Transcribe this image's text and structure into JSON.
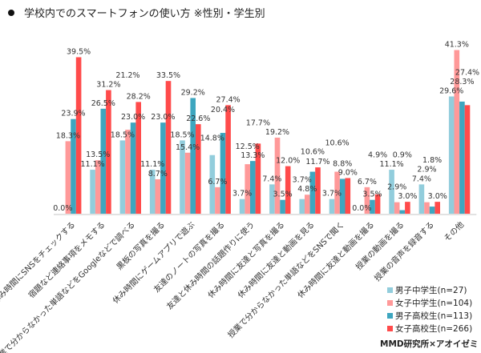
{
  "title": "学校内でのスマートフォンの使い方 ※性別・学生別",
  "credit": "MMD研究所×アオイゼミ",
  "chart_data": {
    "type": "bar",
    "title": "学校内でのスマートフォンの使い方 ※性別・学生別",
    "xlabel": "",
    "ylabel": "",
    "ylim": [
      0,
      45
    ],
    "grid": false,
    "legend_position": "bottom-right",
    "value_suffix": "%",
    "categories": [
      "休み時間にSNSをチェックする",
      "宿題など連絡事項をメモする",
      "授業で分からなかった単語などをGoogleなどで調べる",
      "黒板の写真を撮る",
      "休み時間にゲームアプリで遊ぶ",
      "友達のノートの写真を撮る",
      "友達と休み時間の話題作りに使う",
      "休み時間に友達と写真を撮る",
      "休み時間に友達と動画を見る",
      "授業で分からなかった単語などをSNSで聞く",
      "休み時間に友達と動画を撮る",
      "授業の動画を撮る",
      "授業の音声を録音する",
      "その他"
    ],
    "series": [
      {
        "name": "男子中学生(n=27)",
        "color": "#92CDDC",
        "values": [
          0.0,
          11.1,
          18.5,
          11.1,
          18.5,
          14.8,
          3.7,
          7.4,
          3.7,
          3.7,
          0.0,
          11.1,
          7.4,
          29.6
        ]
      },
      {
        "name": "女子中学生(n=104)",
        "color": "#FF9999",
        "values": [
          18.3,
          13.5,
          21.2,
          8.7,
          15.4,
          6.7,
          12.5,
          19.2,
          4.8,
          10.6,
          6.7,
          2.9,
          2.9,
          41.3
        ]
      },
      {
        "name": "男子高校生(n=113)",
        "color": "#3EA6BF",
        "values": [
          23.9,
          26.5,
          23.0,
          23.0,
          29.2,
          20.4,
          13.3,
          3.5,
          10.6,
          8.8,
          3.5,
          0.9,
          1.8,
          28.3
        ]
      },
      {
        "name": "女子高校生(n=266)",
        "color": "#FF4B4B",
        "values": [
          39.5,
          31.2,
          28.2,
          33.5,
          22.6,
          27.4,
          17.7,
          12.0,
          11.7,
          9.0,
          4.9,
          3.0,
          3.0,
          27.4
        ]
      }
    ]
  }
}
